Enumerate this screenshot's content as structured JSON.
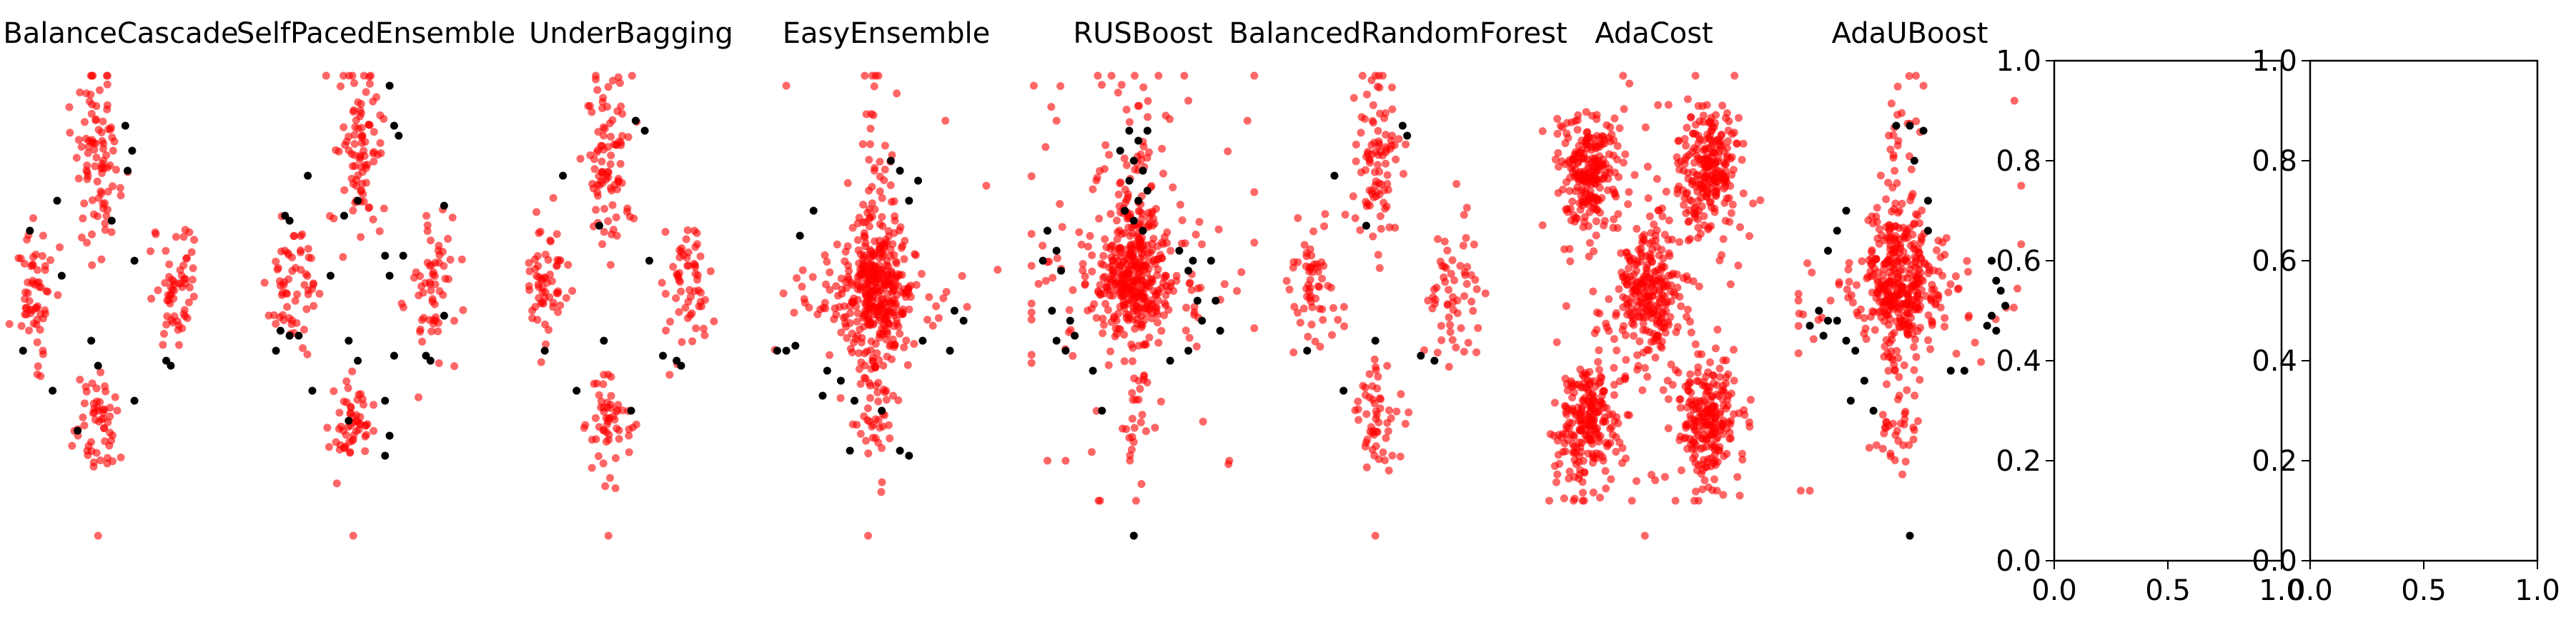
{
  "figure": {
    "colors": {
      "majority": "#ff0000",
      "minority": "#000000",
      "axes": "#000000",
      "background": "#ffffff"
    }
  },
  "chart_data": [
    {
      "type": "scatter",
      "title": "BalanceCascade",
      "axis": "off",
      "grid": false,
      "clusters": [
        {
          "name": "top",
          "center": [
            0.4,
            0.8
          ],
          "spread": [
            0.05,
            0.09
          ],
          "n": 90
        },
        {
          "name": "left",
          "center": [
            0.12,
            0.55
          ],
          "spread": [
            0.05,
            0.07
          ],
          "n": 60
        },
        {
          "name": "right",
          "center": [
            0.75,
            0.55
          ],
          "spread": [
            0.05,
            0.07
          ],
          "n": 60
        },
        {
          "name": "bottom",
          "center": [
            0.4,
            0.28
          ],
          "spread": [
            0.05,
            0.05
          ],
          "n": 55
        }
      ],
      "outliers": [
        [
          0.4,
          0.05
        ]
      ],
      "minority_points": [
        [
          0.52,
          0.87
        ],
        [
          0.55,
          0.82
        ],
        [
          0.53,
          0.78
        ],
        [
          0.22,
          0.72
        ],
        [
          0.46,
          0.68
        ],
        [
          0.1,
          0.66
        ],
        [
          0.56,
          0.6
        ],
        [
          0.24,
          0.57
        ],
        [
          0.07,
          0.42
        ],
        [
          0.37,
          0.44
        ],
        [
          0.4,
          0.39
        ],
        [
          0.7,
          0.4
        ],
        [
          0.72,
          0.39
        ],
        [
          0.2,
          0.34
        ],
        [
          0.56,
          0.32
        ],
        [
          0.31,
          0.26
        ]
      ]
    },
    {
      "type": "scatter",
      "title": "SelfPacedEnsemble",
      "axis": "off",
      "grid": false,
      "clusters": [
        {
          "name": "top",
          "center": [
            0.42,
            0.8
          ],
          "spread": [
            0.05,
            0.09
          ],
          "n": 90
        },
        {
          "name": "left",
          "center": [
            0.13,
            0.55
          ],
          "spread": [
            0.05,
            0.07
          ],
          "n": 60
        },
        {
          "name": "right",
          "center": [
            0.75,
            0.55
          ],
          "spread": [
            0.05,
            0.07
          ],
          "n": 60
        },
        {
          "name": "bottom",
          "center": [
            0.4,
            0.28
          ],
          "spread": [
            0.05,
            0.05
          ],
          "n": 55
        }
      ],
      "outliers": [
        [
          0.4,
          0.05
        ]
      ],
      "minority_points": [
        [
          0.56,
          0.95
        ],
        [
          0.58,
          0.87
        ],
        [
          0.6,
          0.85
        ],
        [
          0.2,
          0.77
        ],
        [
          0.42,
          0.72
        ],
        [
          0.36,
          0.69
        ],
        [
          0.8,
          0.71
        ],
        [
          0.1,
          0.69
        ],
        [
          0.12,
          0.68
        ],
        [
          0.54,
          0.61
        ],
        [
          0.62,
          0.61
        ],
        [
          0.3,
          0.57
        ],
        [
          0.56,
          0.57
        ],
        [
          0.8,
          0.49
        ],
        [
          0.08,
          0.46
        ],
        [
          0.12,
          0.45
        ],
        [
          0.16,
          0.45
        ],
        [
          0.06,
          0.42
        ],
        [
          0.38,
          0.44
        ],
        [
          0.42,
          0.4
        ],
        [
          0.58,
          0.41
        ],
        [
          0.72,
          0.41
        ],
        [
          0.74,
          0.4
        ],
        [
          0.22,
          0.34
        ],
        [
          0.54,
          0.32
        ],
        [
          0.38,
          0.28
        ],
        [
          0.56,
          0.25
        ],
        [
          0.54,
          0.21
        ]
      ]
    },
    {
      "type": "scatter",
      "title": "UnderBagging",
      "axis": "off",
      "grid": false,
      "clusters": [
        {
          "name": "top",
          "center": [
            0.4,
            0.8
          ],
          "spread": [
            0.05,
            0.09
          ],
          "n": 90
        },
        {
          "name": "left",
          "center": [
            0.12,
            0.55
          ],
          "spread": [
            0.05,
            0.07
          ],
          "n": 60
        },
        {
          "name": "right",
          "center": [
            0.75,
            0.55
          ],
          "spread": [
            0.05,
            0.07
          ],
          "n": 60
        },
        {
          "name": "bottom",
          "center": [
            0.4,
            0.28
          ],
          "spread": [
            0.05,
            0.05
          ],
          "n": 55
        }
      ],
      "outliers": [
        [
          0.4,
          0.05
        ]
      ],
      "minority_points": [
        [
          0.52,
          0.88
        ],
        [
          0.56,
          0.86
        ],
        [
          0.2,
          0.77
        ],
        [
          0.36,
          0.67
        ],
        [
          0.58,
          0.6
        ],
        [
          0.12,
          0.42
        ],
        [
          0.38,
          0.44
        ],
        [
          0.64,
          0.41
        ],
        [
          0.7,
          0.4
        ],
        [
          0.72,
          0.39
        ],
        [
          0.26,
          0.34
        ],
        [
          0.5,
          0.3
        ]
      ]
    },
    {
      "type": "scatter",
      "title": "EasyEnsemble",
      "axis": "off",
      "grid": false,
      "clusters": [
        {
          "name": "dense",
          "center": [
            0.46,
            0.55
          ],
          "spread": [
            0.08,
            0.07
          ],
          "n": 260
        },
        {
          "name": "vertical",
          "center": [
            0.46,
            0.6
          ],
          "spread": [
            0.04,
            0.18
          ],
          "n": 110
        },
        {
          "name": "horizontal",
          "center": [
            0.45,
            0.53
          ],
          "spread": [
            0.22,
            0.05
          ],
          "n": 80
        },
        {
          "name": "bottom",
          "center": [
            0.44,
            0.27
          ],
          "spread": [
            0.05,
            0.04
          ],
          "n": 25
        }
      ],
      "outliers": [
        [
          0.06,
          0.95
        ],
        [
          0.76,
          0.88
        ],
        [
          0.94,
          0.75
        ],
        [
          0.42,
          0.05
        ]
      ],
      "minority_points": [
        [
          0.52,
          0.8
        ],
        [
          0.56,
          0.78
        ],
        [
          0.64,
          0.76
        ],
        [
          0.6,
          0.72
        ],
        [
          0.18,
          0.7
        ],
        [
          0.12,
          0.65
        ],
        [
          0.8,
          0.5
        ],
        [
          0.84,
          0.48
        ],
        [
          0.66,
          0.44
        ],
        [
          0.02,
          0.42
        ],
        [
          0.06,
          0.42
        ],
        [
          0.1,
          0.43
        ],
        [
          0.24,
          0.38
        ],
        [
          0.3,
          0.36
        ],
        [
          0.22,
          0.33
        ],
        [
          0.36,
          0.32
        ],
        [
          0.48,
          0.3
        ],
        [
          0.56,
          0.22
        ],
        [
          0.34,
          0.22
        ],
        [
          0.6,
          0.21
        ],
        [
          0.78,
          0.42
        ]
      ]
    },
    {
      "type": "scatter",
      "title": "RUSBoost",
      "axis": "off",
      "grid": false,
      "clusters": [
        {
          "name": "dense",
          "center": [
            0.46,
            0.57
          ],
          "spread": [
            0.09,
            0.07
          ],
          "n": 280
        },
        {
          "name": "vertical",
          "center": [
            0.46,
            0.6
          ],
          "spread": [
            0.05,
            0.2
          ],
          "n": 100
        },
        {
          "name": "horizontal",
          "center": [
            0.46,
            0.55
          ],
          "spread": [
            0.24,
            0.06
          ],
          "n": 80
        },
        {
          "name": "scatter",
          "center": [
            0.5,
            0.6
          ],
          "spread": [
            0.3,
            0.22
          ],
          "n": 60
        }
      ],
      "outliers": [
        [
          0.02,
          0.95
        ],
        [
          0.12,
          0.88
        ],
        [
          0.7,
          0.92
        ],
        [
          0.96,
          0.88
        ],
        [
          0.08,
          0.2
        ],
        [
          0.16,
          0.2
        ],
        [
          0.88,
          0.2
        ],
        [
          0.46,
          0.05
        ]
      ],
      "minority_points": [
        [
          0.44,
          0.86
        ],
        [
          0.48,
          0.84
        ],
        [
          0.52,
          0.86
        ],
        [
          0.4,
          0.82
        ],
        [
          0.46,
          0.8
        ],
        [
          0.5,
          0.78
        ],
        [
          0.44,
          0.76
        ],
        [
          0.52,
          0.74
        ],
        [
          0.48,
          0.72
        ],
        [
          0.42,
          0.7
        ],
        [
          0.46,
          0.68
        ],
        [
          0.5,
          0.66
        ],
        [
          0.08,
          0.66
        ],
        [
          0.12,
          0.62
        ],
        [
          0.06,
          0.6
        ],
        [
          0.14,
          0.58
        ],
        [
          0.66,
          0.62
        ],
        [
          0.72,
          0.6
        ],
        [
          0.7,
          0.58
        ],
        [
          0.8,
          0.6
        ],
        [
          0.74,
          0.52
        ],
        [
          0.82,
          0.52
        ],
        [
          0.76,
          0.48
        ],
        [
          0.84,
          0.46
        ],
        [
          0.1,
          0.5
        ],
        [
          0.18,
          0.48
        ],
        [
          0.2,
          0.45
        ],
        [
          0.12,
          0.44
        ],
        [
          0.16,
          0.42
        ],
        [
          0.7,
          0.42
        ],
        [
          0.62,
          0.4
        ],
        [
          0.28,
          0.38
        ],
        [
          0.32,
          0.3
        ],
        [
          0.46,
          0.05
        ]
      ]
    },
    {
      "type": "scatter",
      "title": "BalancedRandomForest",
      "axis": "off",
      "grid": false,
      "clusters": [
        {
          "name": "top",
          "center": [
            0.4,
            0.8
          ],
          "spread": [
            0.05,
            0.09
          ],
          "n": 90
        },
        {
          "name": "left",
          "center": [
            0.12,
            0.55
          ],
          "spread": [
            0.05,
            0.07
          ],
          "n": 60
        },
        {
          "name": "right",
          "center": [
            0.75,
            0.55
          ],
          "spread": [
            0.05,
            0.07
          ],
          "n": 60
        },
        {
          "name": "bottom",
          "center": [
            0.4,
            0.28
          ],
          "spread": [
            0.05,
            0.05
          ],
          "n": 55
        }
      ],
      "outliers": [
        [
          0.4,
          0.05
        ]
      ],
      "minority_points": [
        [
          0.52,
          0.87
        ],
        [
          0.54,
          0.85
        ],
        [
          0.22,
          0.77
        ],
        [
          0.36,
          0.67
        ],
        [
          0.1,
          0.42
        ],
        [
          0.4,
          0.44
        ],
        [
          0.6,
          0.41
        ],
        [
          0.66,
          0.4
        ],
        [
          0.26,
          0.34
        ]
      ]
    },
    {
      "type": "scatter",
      "title": "AdaCost",
      "axis": "off",
      "grid": false,
      "clusters": [
        {
          "name": "top-left",
          "center": [
            0.2,
            0.78
          ],
          "spread": [
            0.07,
            0.06
          ],
          "n": 230
        },
        {
          "name": "top-right",
          "center": [
            0.74,
            0.78
          ],
          "spread": [
            0.07,
            0.06
          ],
          "n": 230
        },
        {
          "name": "middle",
          "center": [
            0.47,
            0.54
          ],
          "spread": [
            0.07,
            0.06
          ],
          "n": 210
        },
        {
          "name": "bottom-left",
          "center": [
            0.2,
            0.28
          ],
          "spread": [
            0.07,
            0.07
          ],
          "n": 230
        },
        {
          "name": "bottom-right",
          "center": [
            0.74,
            0.28
          ],
          "spread": [
            0.07,
            0.07
          ],
          "n": 230
        },
        {
          "name": "links",
          "center": [
            0.47,
            0.54
          ],
          "spread": [
            0.18,
            0.2
          ],
          "n": 120
        }
      ],
      "outliers": [
        [
          0.46,
          0.05
        ]
      ],
      "minority_points": []
    },
    {
      "type": "scatter",
      "title": "AdaUBoost",
      "axis": "off",
      "grid": false,
      "clusters": [
        {
          "name": "dense",
          "center": [
            0.45,
            0.55
          ],
          "spread": [
            0.08,
            0.07
          ],
          "n": 240
        },
        {
          "name": "vertical",
          "center": [
            0.45,
            0.6
          ],
          "spread": [
            0.04,
            0.18
          ],
          "n": 110
        },
        {
          "name": "horizontal",
          "center": [
            0.45,
            0.53
          ],
          "spread": [
            0.24,
            0.05
          ],
          "n": 90
        },
        {
          "name": "bottom",
          "center": [
            0.44,
            0.26
          ],
          "spread": [
            0.05,
            0.04
          ],
          "n": 25
        }
      ],
      "outliers": [
        [
          0.02,
          0.14
        ],
        [
          0.06,
          0.14
        ],
        [
          0.96,
          0.92
        ],
        [
          0.99,
          0.75
        ],
        [
          0.56,
          0.95
        ]
      ],
      "minority_points": [
        [
          0.44,
          0.87
        ],
        [
          0.5,
          0.87
        ],
        [
          0.56,
          0.86
        ],
        [
          0.52,
          0.8
        ],
        [
          0.58,
          0.72
        ],
        [
          0.22,
          0.7
        ],
        [
          0.18,
          0.66
        ],
        [
          0.58,
          0.66
        ],
        [
          0.14,
          0.62
        ],
        [
          0.86,
          0.6
        ],
        [
          0.88,
          0.56
        ],
        [
          0.9,
          0.54
        ],
        [
          0.92,
          0.51
        ],
        [
          0.86,
          0.49
        ],
        [
          0.84,
          0.47
        ],
        [
          0.88,
          0.46
        ],
        [
          0.1,
          0.5
        ],
        [
          0.14,
          0.48
        ],
        [
          0.18,
          0.48
        ],
        [
          0.06,
          0.47
        ],
        [
          0.22,
          0.44
        ],
        [
          0.26,
          0.42
        ],
        [
          0.12,
          0.45
        ],
        [
          0.74,
          0.38
        ],
        [
          0.68,
          0.38
        ],
        [
          0.3,
          0.36
        ],
        [
          0.24,
          0.32
        ],
        [
          0.34,
          0.3
        ],
        [
          0.5,
          0.05
        ]
      ]
    },
    {
      "type": "scatter",
      "title": "",
      "axis": "on",
      "grid": false,
      "xlim": [
        0,
        1
      ],
      "ylim": [
        0,
        1
      ],
      "xticks": [
        "0.0",
        "0.5",
        "1.0"
      ],
      "yticks": [
        "0.0",
        "0.2",
        "0.4",
        "0.6",
        "0.8",
        "1.0"
      ],
      "points": []
    },
    {
      "type": "scatter",
      "title": "",
      "axis": "on",
      "grid": false,
      "xlim": [
        0,
        1
      ],
      "ylim": [
        0,
        1
      ],
      "xticks": [
        "0.0",
        "0.5",
        "1.0"
      ],
      "yticks": [
        "0.0",
        "0.2",
        "0.4",
        "0.6",
        "0.8",
        "1.0"
      ],
      "points": []
    }
  ]
}
